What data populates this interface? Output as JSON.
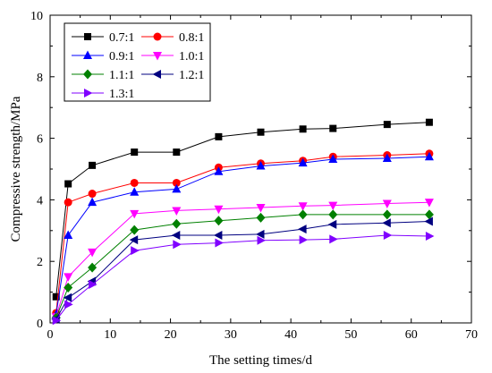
{
  "chart_data": {
    "type": "line",
    "xlabel": "The setting times/d",
    "ylabel": "Compressive strength/MPa",
    "xlim": [
      0,
      70
    ],
    "ylim": [
      0,
      10
    ],
    "x_ticks": [
      0,
      10,
      20,
      30,
      40,
      50,
      60,
      70
    ],
    "y_ticks": [
      0,
      2,
      4,
      6,
      8,
      10
    ],
    "grid": false,
    "legend_position": "top-left",
    "x": [
      1,
      3,
      7,
      14,
      21,
      28,
      35,
      42,
      47,
      56,
      63
    ],
    "series": [
      {
        "name": "0.7:1",
        "color": "#000000",
        "marker": "square",
        "values": [
          0.85,
          4.52,
          5.12,
          5.55,
          5.55,
          6.05,
          6.2,
          6.3,
          6.32,
          6.45,
          6.52
        ]
      },
      {
        "name": "0.8:1",
        "color": "#ff0000",
        "marker": "circle",
        "values": [
          0.32,
          3.92,
          4.2,
          4.55,
          4.55,
          5.05,
          5.18,
          5.27,
          5.4,
          5.45,
          5.5
        ]
      },
      {
        "name": "0.9:1",
        "color": "#0000ff",
        "marker": "triangle-up",
        "values": [
          0.27,
          2.85,
          3.92,
          4.25,
          4.35,
          4.92,
          5.1,
          5.2,
          5.32,
          5.35,
          5.4
        ]
      },
      {
        "name": "1.0:1",
        "color": "#ff00ff",
        "marker": "triangle-down",
        "values": [
          0.2,
          1.5,
          2.3,
          3.55,
          3.65,
          3.7,
          3.75,
          3.8,
          3.82,
          3.88,
          3.92
        ]
      },
      {
        "name": "1.1:1",
        "color": "#008000",
        "marker": "diamond",
        "values": [
          0.17,
          1.15,
          1.8,
          3.02,
          3.22,
          3.32,
          3.42,
          3.52,
          3.52,
          3.52,
          3.52
        ]
      },
      {
        "name": "1.2:1",
        "color": "#000080",
        "marker": "triangle-left",
        "values": [
          0.12,
          0.82,
          1.35,
          2.7,
          2.85,
          2.85,
          2.88,
          3.05,
          3.2,
          3.25,
          3.3
        ]
      },
      {
        "name": "1.3:1",
        "color": "#8000ff",
        "marker": "triangle-right",
        "values": [
          0.08,
          0.6,
          1.25,
          2.35,
          2.55,
          2.6,
          2.68,
          2.7,
          2.72,
          2.85,
          2.82
        ]
      }
    ]
  }
}
